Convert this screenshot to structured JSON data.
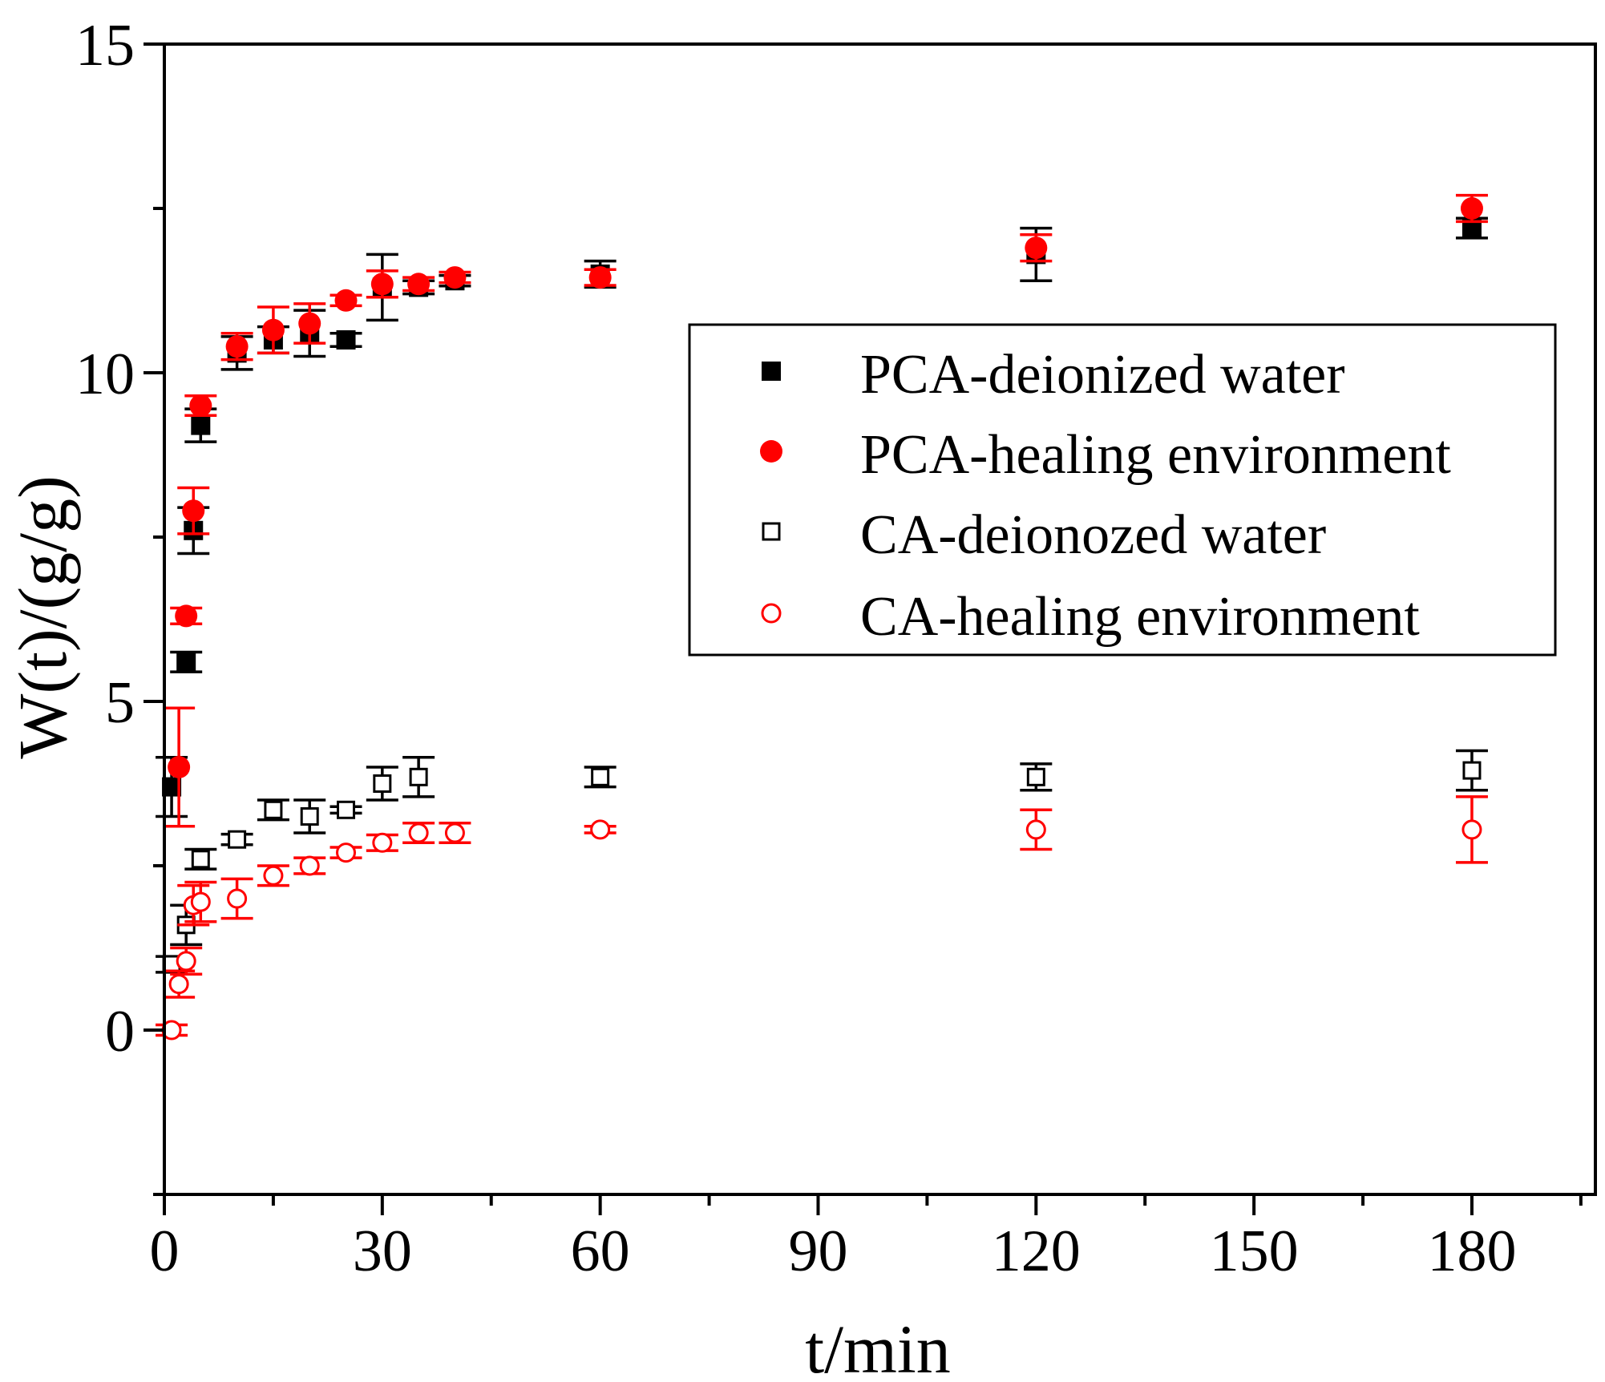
{
  "chart_data": {
    "type": "scatter",
    "title": "",
    "xlabel": "t/min",
    "ylabel": "W(t)/(g/g)",
    "xlim": [
      0,
      197
    ],
    "ylim": [
      -2.5,
      15
    ],
    "x_ticks": [
      0,
      30,
      60,
      90,
      120,
      150,
      180
    ],
    "x_tick_labels": [
      "0",
      "30",
      "60",
      "90",
      "120",
      "150",
      "180"
    ],
    "x_minor_ticks": [
      15,
      45,
      75,
      105,
      135,
      165,
      195
    ],
    "y_ticks": [
      0,
      5,
      10,
      15
    ],
    "y_tick_labels": [
      "0",
      "5",
      "10",
      "15"
    ],
    "y_minor_ticks": [
      -2.5,
      2.5,
      7.5,
      12.5
    ],
    "grid": false,
    "legend_position": "right",
    "series": [
      {
        "name": "PCA-deionized water",
        "marker": "filled-square",
        "color": "#000000",
        "points": [
          {
            "x": 1,
            "y": 3.7,
            "err": 0.45
          },
          {
            "x": 3,
            "y": 5.6,
            "err": 0.15
          },
          {
            "x": 4,
            "y": 7.6,
            "err": 0.35
          },
          {
            "x": 5,
            "y": 9.2,
            "err": 0.25
          },
          {
            "x": 10,
            "y": 10.3,
            "err": 0.25
          },
          {
            "x": 15,
            "y": 10.5,
            "err": 0.2
          },
          {
            "x": 20,
            "y": 10.6,
            "err": 0.35
          },
          {
            "x": 25,
            "y": 10.5,
            "err": 0.1
          },
          {
            "x": 30,
            "y": 11.3,
            "err": 0.5
          },
          {
            "x": 35,
            "y": 11.3,
            "err": 0.1
          },
          {
            "x": 40,
            "y": 11.4,
            "err": 0.08
          },
          {
            "x": 60,
            "y": 11.5,
            "err": 0.2
          },
          {
            "x": 120,
            "y": 11.8,
            "err": 0.4
          },
          {
            "x": 180,
            "y": 12.2,
            "err": 0.15
          }
        ]
      },
      {
        "name": "PCA-healing environment",
        "marker": "filled-circle",
        "color": "#ff0000",
        "points": [
          {
            "x": 2,
            "y": 4.0,
            "err": 0.9
          },
          {
            "x": 3,
            "y": 6.3,
            "err": 0.12
          },
          {
            "x": 4,
            "y": 7.9,
            "err": 0.35
          },
          {
            "x": 5,
            "y": 9.5,
            "err": 0.15
          },
          {
            "x": 10,
            "y": 10.4,
            "err": 0.2
          },
          {
            "x": 15,
            "y": 10.65,
            "err": 0.35
          },
          {
            "x": 20,
            "y": 10.75,
            "err": 0.3
          },
          {
            "x": 25,
            "y": 11.1,
            "err": 0.08
          },
          {
            "x": 30,
            "y": 11.35,
            "err": 0.2
          },
          {
            "x": 35,
            "y": 11.35,
            "err": 0.1
          },
          {
            "x": 40,
            "y": 11.45,
            "err": 0.08
          },
          {
            "x": 60,
            "y": 11.45,
            "err": 0.12
          },
          {
            "x": 120,
            "y": 11.9,
            "err": 0.2
          },
          {
            "x": 180,
            "y": 12.5,
            "err": 0.2
          }
        ]
      },
      {
        "name": "CA-deionozed water",
        "marker": "open-square",
        "color": "#000000",
        "points": [
          {
            "x": 1,
            "y": 1.0,
            "err": 0.12
          },
          {
            "x": 3,
            "y": 1.6,
            "err": 0.3
          },
          {
            "x": 5,
            "y": 2.6,
            "err": 0.15
          },
          {
            "x": 10,
            "y": 2.9,
            "err": 0.08
          },
          {
            "x": 15,
            "y": 3.35,
            "err": 0.15
          },
          {
            "x": 20,
            "y": 3.25,
            "err": 0.25
          },
          {
            "x": 25,
            "y": 3.35,
            "err": 0.05
          },
          {
            "x": 30,
            "y": 3.75,
            "err": 0.25
          },
          {
            "x": 35,
            "y": 3.85,
            "err": 0.3
          },
          {
            "x": 60,
            "y": 3.85,
            "err": 0.15
          },
          {
            "x": 120,
            "y": 3.85,
            "err": 0.2
          },
          {
            "x": 180,
            "y": 3.95,
            "err": 0.3
          }
        ]
      },
      {
        "name": "CA-healing environment",
        "marker": "open-circle",
        "color": "#ff0000",
        "points": [
          {
            "x": 1,
            "y": 0.0,
            "err": 0.08
          },
          {
            "x": 2,
            "y": 0.7,
            "err": 0.2
          },
          {
            "x": 3,
            "y": 1.05,
            "err": 0.2
          },
          {
            "x": 4,
            "y": 1.9,
            "err": 0.3
          },
          {
            "x": 5,
            "y": 1.95,
            "err": 0.3
          },
          {
            "x": 10,
            "y": 2.0,
            "err": 0.3
          },
          {
            "x": 15,
            "y": 2.35,
            "err": 0.15
          },
          {
            "x": 20,
            "y": 2.5,
            "err": 0.12
          },
          {
            "x": 25,
            "y": 2.7,
            "err": 0.08
          },
          {
            "x": 30,
            "y": 2.85,
            "err": 0.12
          },
          {
            "x": 35,
            "y": 3.0,
            "err": 0.15
          },
          {
            "x": 40,
            "y": 3.0,
            "err": 0.15
          },
          {
            "x": 60,
            "y": 3.05,
            "err": 0.05
          },
          {
            "x": 120,
            "y": 3.05,
            "err": 0.3
          },
          {
            "x": 180,
            "y": 3.05,
            "err": 0.5
          }
        ]
      }
    ]
  }
}
